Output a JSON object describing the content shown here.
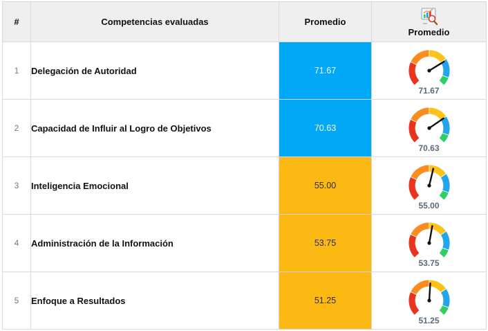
{
  "header": {
    "num": "#",
    "competencias": "Competencias evaluadas",
    "promedio": "Promedio",
    "gauge_label": "Promedio",
    "gauge_icon": "chart-analysis-icon"
  },
  "colors": {
    "blue": "#00a8f8",
    "amber": "#fdb913",
    "gauge_red": "#e8341c",
    "gauge_orange": "#fb8c1e",
    "gauge_yellow": "#fdc21a",
    "gauge_blue": "#21a6ee",
    "gauge_green": "#2fcf66"
  },
  "gauge_scale": {
    "min": 0,
    "max": 100
  },
  "rows": [
    {
      "num": "1",
      "name": "Delegación de Autoridad",
      "value": "71.67",
      "score": 71.67,
      "band": "blue"
    },
    {
      "num": "2",
      "name": "Capacidad de Influir al Logro de Objetivos",
      "value": "70.63",
      "score": 70.63,
      "band": "blue"
    },
    {
      "num": "3",
      "name": "Inteligencia Emocional",
      "value": "55.00",
      "score": 55.0,
      "band": "amber"
    },
    {
      "num": "4",
      "name": "Administración de la Información",
      "value": "53.75",
      "score": 53.75,
      "band": "amber"
    },
    {
      "num": "5",
      "name": "Enfoque a Resultados",
      "value": "51.25",
      "score": 51.25,
      "band": "amber"
    }
  ]
}
